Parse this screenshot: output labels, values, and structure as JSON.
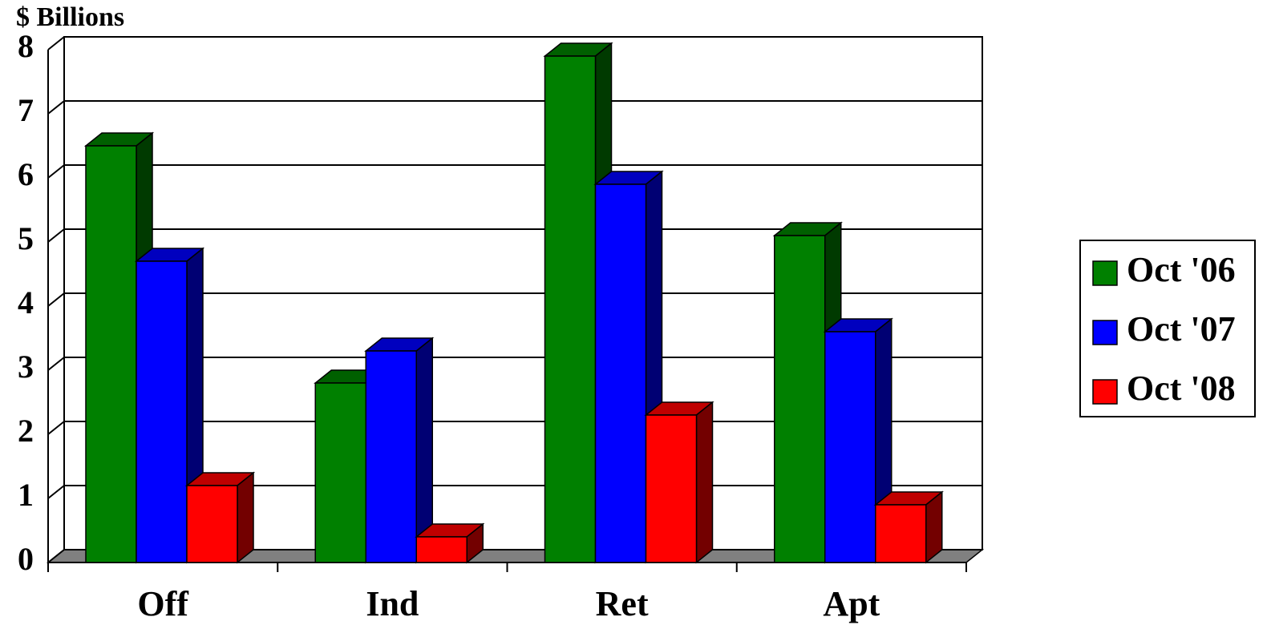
{
  "chart_data": {
    "type": "bar3d",
    "y_axis_label": "$ Billions",
    "categories": [
      "Off",
      "Ind",
      "Ret",
      "Apt"
    ],
    "series": [
      {
        "name": "Oct '06",
        "color": "#008000",
        "values": [
          6.5,
          2.8,
          7.9,
          5.1
        ]
      },
      {
        "name": "Oct '07",
        "color": "#0000ff",
        "values": [
          4.7,
          3.3,
          5.9,
          3.6
        ]
      },
      {
        "name": "Oct '08",
        "color": "#ff0000",
        "values": [
          1.2,
          0.4,
          2.3,
          0.9
        ]
      }
    ],
    "ylim": [
      0,
      8
    ],
    "yticks": [
      0,
      1,
      2,
      3,
      4,
      5,
      6,
      7,
      8
    ],
    "grid": true,
    "legend": "right"
  }
}
